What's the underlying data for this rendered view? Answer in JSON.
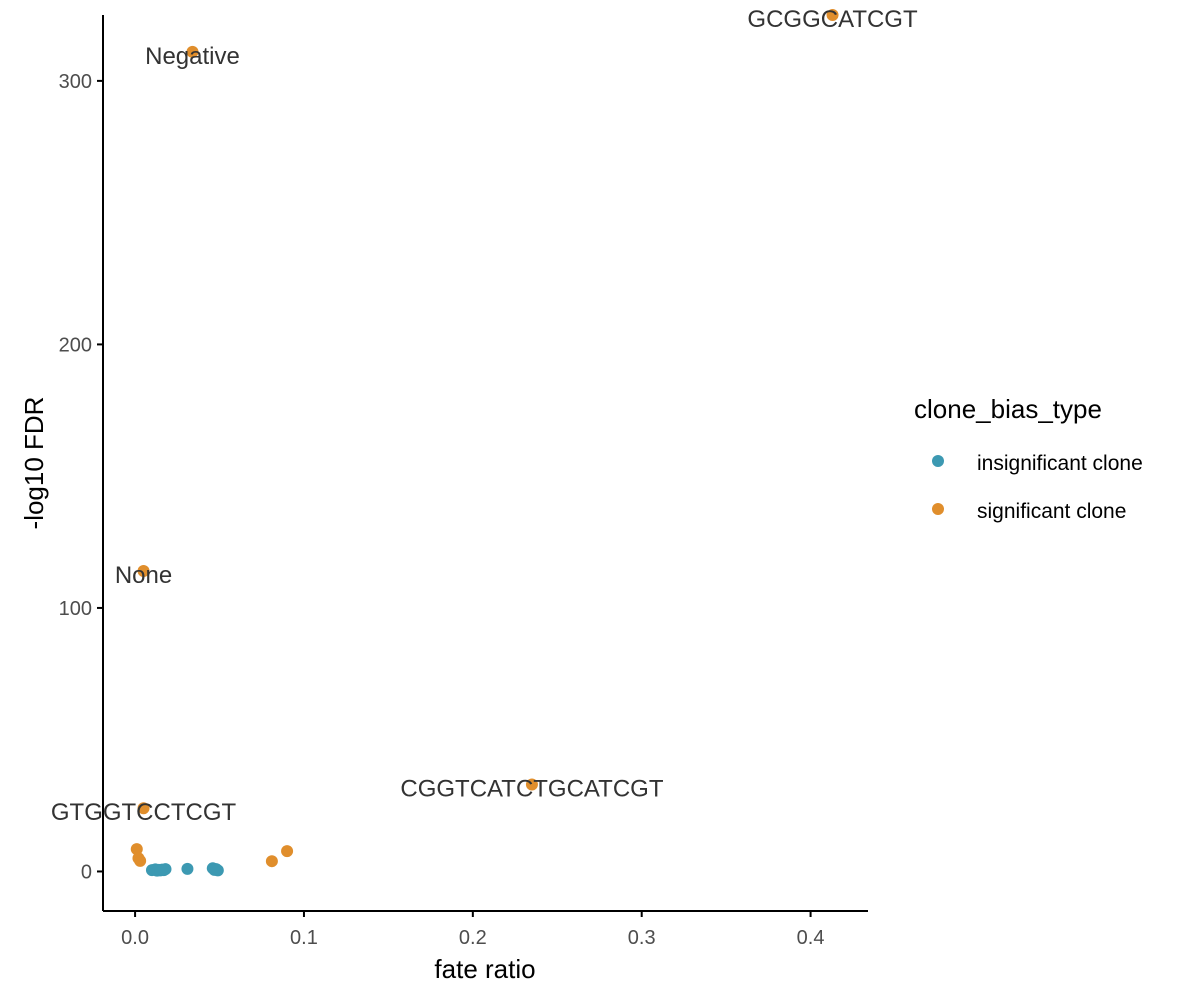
{
  "colors": {
    "insignificant": "#3c99b2",
    "significant": "#e08e2c",
    "axis": "#000000",
    "tick_text": "#4d4d4d",
    "label_text": "#333333"
  },
  "chart_data": {
    "type": "scatter",
    "title": "",
    "xlabel": "fate ratio",
    "ylabel": "-log10 FDR",
    "xlim": [
      -0.019,
      0.434
    ],
    "ylim": [
      -15,
      325
    ],
    "x_ticks": [
      "0.0",
      "0.1",
      "0.2",
      "0.3",
      "0.4"
    ],
    "x_tick_values": [
      0.0,
      0.1,
      0.2,
      0.3,
      0.4
    ],
    "y_ticks": [
      "0",
      "100",
      "200",
      "300"
    ],
    "y_tick_values": [
      0,
      100,
      200,
      300
    ],
    "grid": false,
    "legend": {
      "title": "clone_bias_type",
      "placement": "right",
      "entries": [
        "insignificant clone",
        "significant clone"
      ]
    },
    "series": [
      {
        "name": "insignificant clone",
        "points": [
          {
            "x": 0.01,
            "y": 0.5
          },
          {
            "x": 0.012,
            "y": 0.8
          },
          {
            "x": 0.013,
            "y": 0.3
          },
          {
            "x": 0.014,
            "y": 0.6
          },
          {
            "x": 0.015,
            "y": 0.4
          },
          {
            "x": 0.016,
            "y": 0.7
          },
          {
            "x": 0.017,
            "y": 0.5
          },
          {
            "x": 0.018,
            "y": 0.9
          },
          {
            "x": 0.031,
            "y": 1.0
          },
          {
            "x": 0.046,
            "y": 1.2
          },
          {
            "x": 0.047,
            "y": 0.6
          },
          {
            "x": 0.048,
            "y": 0.9
          },
          {
            "x": 0.049,
            "y": 0.4
          }
        ]
      },
      {
        "name": "significant clone",
        "points": [
          {
            "x": 0.034,
            "y": 311
          },
          {
            "x": 0.413,
            "y": 325
          },
          {
            "x": 0.005,
            "y": 114
          },
          {
            "x": 0.235,
            "y": 33
          },
          {
            "x": 0.005,
            "y": 24
          },
          {
            "x": 0.001,
            "y": 8.5
          },
          {
            "x": 0.002,
            "y": 5
          },
          {
            "x": 0.003,
            "y": 4
          },
          {
            "x": 0.081,
            "y": 3.9
          },
          {
            "x": 0.09,
            "y": 7.7
          }
        ]
      }
    ],
    "annotations": [
      {
        "text": "Negative",
        "x": 0.034,
        "y": 311
      },
      {
        "text": "GCGGCATCGT",
        "x": 0.413,
        "y": 325
      },
      {
        "text": "None",
        "x": 0.005,
        "y": 114
      },
      {
        "text": "CGGTCATCTGCATCGT",
        "x": 0.235,
        "y": 33
      },
      {
        "text": "GTGGTCCTCGT",
        "x": 0.005,
        "y": 24
      }
    ]
  }
}
